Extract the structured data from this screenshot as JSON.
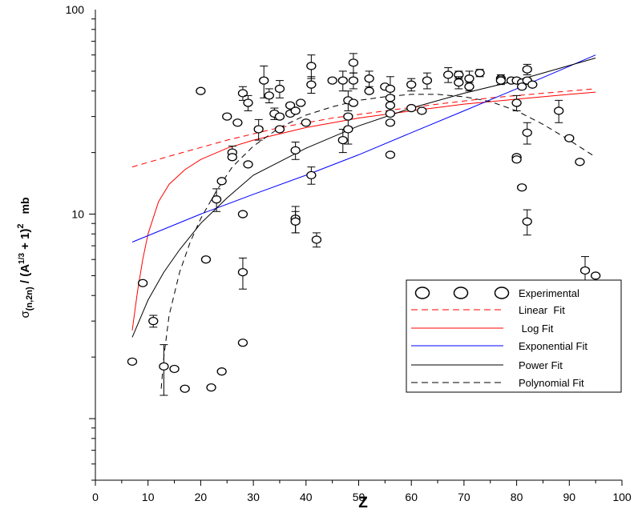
{
  "chart_data": {
    "type": "scatter",
    "xlabel": "Z",
    "ylabel_parts": {
      "sigma": "σ",
      "subscript": "(n,2n)",
      "denominator_open": " / (A",
      "exponent_inner": "1/3",
      "denominator_close": " + 1)",
      "exponent_outer": "2",
      "unit": "mb"
    },
    "x_scale": "linear",
    "y_scale": "log",
    "xlim": [
      0,
      100
    ],
    "ylim": [
      0.5,
      100
    ],
    "x_ticks": [
      "0",
      "10",
      "20",
      "30",
      "40",
      "50",
      "60",
      "70",
      "80",
      "90",
      "100"
    ],
    "y_tick_labels": [
      {
        "value": 10,
        "label": "10"
      },
      {
        "value": 100,
        "label": "100"
      }
    ],
    "grid": false,
    "legend_position": "lower-right",
    "series": [
      {
        "name": "Experimental",
        "kind": "points",
        "marker": "open-circle",
        "color": "#000000",
        "points": [
          {
            "x": 7,
            "y": 1.9
          },
          {
            "x": 9,
            "y": 4.6
          },
          {
            "x": 11,
            "y": 3.0,
            "err": 0.2
          },
          {
            "x": 13,
            "y": 1.8,
            "err": 0.5
          },
          {
            "x": 15,
            "y": 1.75
          },
          {
            "x": 17,
            "y": 1.4
          },
          {
            "x": 20,
            "y": 40
          },
          {
            "x": 21,
            "y": 6.0
          },
          {
            "x": 22,
            "y": 1.42
          },
          {
            "x": 23,
            "y": 11.8,
            "err": 1.5
          },
          {
            "x": 24,
            "y": 14.5
          },
          {
            "x": 24,
            "y": 1.7
          },
          {
            "x": 25,
            "y": 30
          },
          {
            "x": 26,
            "y": 20,
            "err": 1.5
          },
          {
            "x": 26,
            "y": 19
          },
          {
            "x": 27,
            "y": 28
          },
          {
            "x": 28,
            "y": 39,
            "err": 3
          },
          {
            "x": 28,
            "y": 10
          },
          {
            "x": 28,
            "y": 5.2,
            "err": 0.9
          },
          {
            "x": 28,
            "y": 2.35
          },
          {
            "x": 29,
            "y": 35,
            "err": 3
          },
          {
            "x": 29,
            "y": 17.5
          },
          {
            "x": 31,
            "y": 26,
            "err": 3
          },
          {
            "x": 32,
            "y": 45,
            "err": 8
          },
          {
            "x": 33,
            "y": 38,
            "err": 3
          },
          {
            "x": 34,
            "y": 31,
            "err": 2
          },
          {
            "x": 35,
            "y": 41,
            "err": 4
          },
          {
            "x": 35,
            "y": 26
          },
          {
            "x": 35,
            "y": 30
          },
          {
            "x": 37,
            "y": 34
          },
          {
            "x": 37,
            "y": 31
          },
          {
            "x": 38,
            "y": 32
          },
          {
            "x": 38,
            "y": 20.5,
            "err": 2
          },
          {
            "x": 38,
            "y": 9.5,
            "err": 1.4
          },
          {
            "x": 38,
            "y": 9.2,
            "err": 1.1
          },
          {
            "x": 39,
            "y": 35
          },
          {
            "x": 40,
            "y": 28
          },
          {
            "x": 41,
            "y": 53,
            "err": 7
          },
          {
            "x": 41,
            "y": 43,
            "err": 4
          },
          {
            "x": 41,
            "y": 15.5,
            "err": 1.5
          },
          {
            "x": 42,
            "y": 7.5,
            "err": 0.6
          },
          {
            "x": 45,
            "y": 45
          },
          {
            "x": 47,
            "y": 45,
            "err": 5
          },
          {
            "x": 47,
            "y": 23,
            "err": 3
          },
          {
            "x": 48,
            "y": 36,
            "err": 4
          },
          {
            "x": 48,
            "y": 26,
            "err": 4
          },
          {
            "x": 48,
            "y": 30
          },
          {
            "x": 49,
            "y": 55,
            "err": 6
          },
          {
            "x": 49,
            "y": 45,
            "err": 4
          },
          {
            "x": 49,
            "y": 35
          },
          {
            "x": 52,
            "y": 46,
            "err": 4
          },
          {
            "x": 52,
            "y": 40
          },
          {
            "x": 55,
            "y": 42
          },
          {
            "x": 56,
            "y": 41,
            "err": 6
          },
          {
            "x": 56,
            "y": 37
          },
          {
            "x": 56,
            "y": 34
          },
          {
            "x": 56,
            "y": 31
          },
          {
            "x": 56,
            "y": 28
          },
          {
            "x": 56,
            "y": 19.5
          },
          {
            "x": 60,
            "y": 43,
            "err": 3
          },
          {
            "x": 60,
            "y": 33
          },
          {
            "x": 62,
            "y": 32
          },
          {
            "x": 63,
            "y": 45,
            "err": 4
          },
          {
            "x": 67,
            "y": 48,
            "err": 4
          },
          {
            "x": 69,
            "y": 48,
            "err": 2
          },
          {
            "x": 69,
            "y": 44,
            "err": 3
          },
          {
            "x": 71,
            "y": 46,
            "err": 4
          },
          {
            "x": 71,
            "y": 42,
            "err": 2
          },
          {
            "x": 73,
            "y": 49,
            "err": 2
          },
          {
            "x": 77,
            "y": 46,
            "err": 2
          },
          {
            "x": 77,
            "y": 45,
            "err": 2
          },
          {
            "x": 79,
            "y": 45
          },
          {
            "x": 80,
            "y": 45
          },
          {
            "x": 80,
            "y": 35,
            "err": 3
          },
          {
            "x": 80,
            "y": 19
          },
          {
            "x": 80,
            "y": 18.5
          },
          {
            "x": 81,
            "y": 44
          },
          {
            "x": 81,
            "y": 42
          },
          {
            "x": 81,
            "y": 13.5
          },
          {
            "x": 82,
            "y": 51,
            "err": 3
          },
          {
            "x": 82,
            "y": 45
          },
          {
            "x": 82,
            "y": 25,
            "err": 3
          },
          {
            "x": 82,
            "y": 9.2,
            "err": 1.3
          },
          {
            "x": 83,
            "y": 43
          },
          {
            "x": 88,
            "y": 32,
            "err": 4
          },
          {
            "x": 90,
            "y": 23.5
          },
          {
            "x": 92,
            "y": 18
          },
          {
            "x": 93,
            "y": 5.3,
            "err": 0.9
          },
          {
            "x": 95,
            "y": 5.0
          }
        ]
      },
      {
        "name": "Linear  Fit",
        "kind": "curve",
        "color": "#ff0000",
        "dash": "dashed",
        "x": [
          7,
          15,
          25,
          35,
          45,
          55,
          65,
          75,
          85,
          95
        ],
        "y": [
          17,
          19.5,
          23,
          26.5,
          29.5,
          32,
          34.5,
          37,
          39,
          41
        ]
      },
      {
        "name": " Log Fit",
        "kind": "curve",
        "color": "#ff0000",
        "dash": "solid",
        "x": [
          7,
          8,
          9,
          10,
          12,
          14,
          17,
          20,
          25,
          30,
          40,
          50,
          60,
          70,
          80,
          90,
          95
        ],
        "y": [
          2.7,
          4.2,
          6.0,
          8.0,
          11.5,
          14.0,
          16.5,
          18.5,
          21.0,
          23.0,
          26.5,
          29.5,
          32.0,
          34.5,
          36.5,
          38.5,
          39.5
        ]
      },
      {
        "name": "Exponential Fit",
        "kind": "curve",
        "color": "#0000ff",
        "dash": "solid",
        "x": [
          7,
          20,
          30,
          40,
          50,
          60,
          70,
          80,
          95
        ],
        "y": [
          7.3,
          10.0,
          12.5,
          15.5,
          19.5,
          25.0,
          32.0,
          41.0,
          60.0
        ]
      },
      {
        "name": "Power Fit",
        "kind": "curve",
        "color": "#000000",
        "dash": "solid",
        "x": [
          7,
          10,
          13,
          16,
          20,
          25,
          30,
          40,
          50,
          60,
          70,
          80,
          95
        ],
        "y": [
          2.5,
          3.8,
          5.2,
          6.7,
          9.0,
          12.0,
          15.5,
          21.0,
          27.0,
          33.0,
          39.0,
          45.0,
          58.0
        ]
      },
      {
        "name": "Polynomial Fit",
        "kind": "curve",
        "color": "#000000",
        "dash": "dashed",
        "x": [
          12.5,
          13,
          14,
          16,
          18,
          20,
          23,
          26,
          30,
          35,
          40,
          45,
          50,
          55,
          60,
          65,
          70,
          75,
          80,
          85,
          90,
          95
        ],
        "y": [
          1.4,
          2.0,
          3.2,
          5.2,
          7.3,
          9.5,
          13.0,
          17.0,
          21.5,
          26.5,
          30.5,
          33.5,
          36.0,
          37.5,
          38.5,
          38.5,
          37.5,
          35.5,
          32.0,
          27.5,
          23.0,
          19.0
        ]
      }
    ]
  }
}
